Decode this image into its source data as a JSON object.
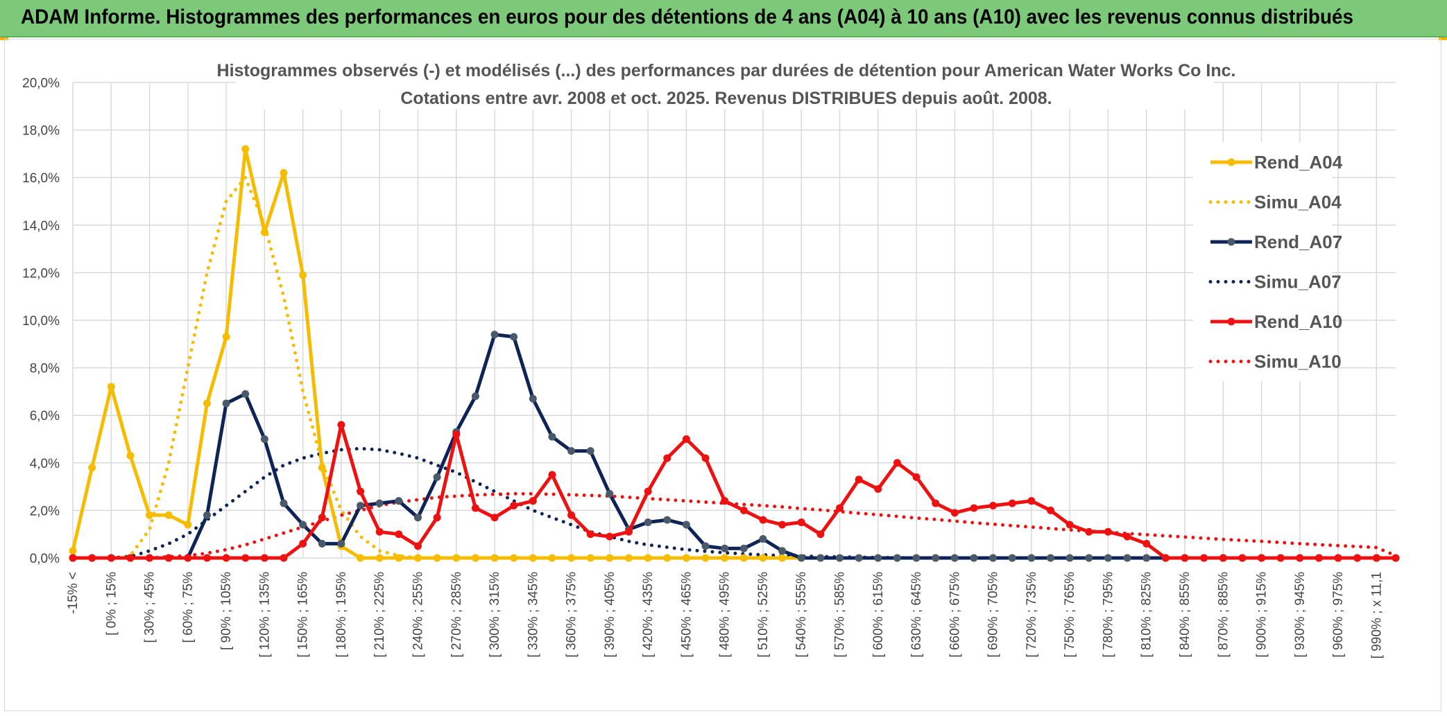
{
  "header": {
    "title": "ADAM Informe. Histogrammes des performances en euros pour des détentions de 4 ans (A04) à 10 ans (A10) avec les revenus connus distribués"
  },
  "chart_data": {
    "type": "line",
    "title_line1": "Histogrammes observés (-) et modélisés (...) des performances par durées de détention pour American Water Works Co Inc.",
    "title_line2": "Cotations entre avr. 2008 et oct. 2025. Revenus DISTRIBUES depuis août. 2008.",
    "ylim": [
      0,
      20
    ],
    "y_ticks": [
      "0,0%",
      "2,0%",
      "4,0%",
      "6,0%",
      "8,0%",
      "10,0%",
      "12,0%",
      "14,0%",
      "16,0%",
      "18,0%",
      "20,0%"
    ],
    "category_labels": [
      "-15% <",
      "[ 0% ; 15%",
      "[ 30% ; 45%",
      "[ 60% ; 75%",
      "[ 90% ; 105%",
      "[ 120% ; 135%",
      "[ 150% ; 165%",
      "[ 180% ; 195%",
      "[ 210% ; 225%",
      "[ 240% ; 255%",
      "[ 270% ; 285%",
      "[ 300% ; 315%",
      "[ 330% ; 345%",
      "[ 360% ; 375%",
      "[ 390% ; 405%",
      "[ 420% ; 435%",
      "[ 450% ; 465%",
      "[ 480% ; 495%",
      "[ 510% ; 525%",
      "[ 540% ; 555%",
      "[ 570% ; 585%",
      "[ 600% ; 615%",
      "[ 630% ; 645%",
      "[ 660% ; 675%",
      "[ 690% ; 705%",
      "[ 720% ; 735%",
      "[ 750% ; 765%",
      "[ 780% ; 795%",
      "[ 810% ; 825%",
      "[ 840% ; 855%",
      "[ 870% ; 885%",
      "[ 900% ; 915%",
      "[ 930% ; 945%",
      "[ 960% ; 975%",
      "[ 990% ; x 11,1"
    ],
    "n_points": 70,
    "series": [
      {
        "name": "Rend_A04",
        "color": "#f5bc00",
        "style": "solid",
        "marker": true,
        "values": [
          0.3,
          3.8,
          7.2,
          4.3,
          1.8,
          1.8,
          1.4,
          6.5,
          9.3,
          17.2,
          13.7,
          16.2,
          11.9,
          3.8,
          0.5,
          0,
          0,
          0,
          0,
          0,
          0,
          0,
          0,
          0,
          0,
          0,
          0,
          0,
          0,
          0,
          0,
          0,
          0,
          0,
          0,
          0,
          0,
          0,
          0,
          0,
          0,
          0,
          0,
          0,
          0,
          0,
          0,
          0,
          0,
          0,
          0,
          0,
          0,
          0,
          0,
          0,
          0,
          0,
          0,
          0,
          0,
          0,
          0,
          0,
          0,
          0,
          0,
          0,
          0,
          0
        ]
      },
      {
        "name": "Simu_A04",
        "color": "#f5bc00",
        "style": "dotted",
        "marker": false,
        "values": [
          0,
          0,
          0,
          0.1,
          1.2,
          4,
          8,
          12,
          15,
          16,
          14,
          11,
          7,
          4,
          2,
          0.9,
          0.3,
          0.1,
          0,
          0,
          0,
          0,
          0,
          0,
          0,
          0,
          0,
          0,
          0,
          0,
          0,
          0,
          0,
          0,
          0,
          0,
          0,
          0,
          0,
          0,
          0,
          0,
          0,
          0,
          0,
          0,
          0,
          0,
          0,
          0,
          0,
          0,
          0,
          0,
          0,
          0,
          0,
          0,
          0,
          0,
          0,
          0,
          0,
          0,
          0,
          0,
          0,
          0,
          0,
          0
        ]
      },
      {
        "name": "Rend_A07",
        "color": "#0f2456",
        "style": "solid",
        "marker": true,
        "values": [
          0,
          0,
          0,
          0,
          0,
          0,
          0,
          1.8,
          6.5,
          6.9,
          5,
          2.3,
          1.4,
          0.6,
          0.6,
          2.2,
          2.3,
          2.4,
          1.7,
          3.4,
          5.3,
          6.8,
          9.4,
          9.3,
          6.7,
          5.1,
          4.5,
          4.5,
          2.7,
          1.2,
          1.5,
          1.6,
          1.4,
          0.5,
          0.4,
          0.4,
          0.8,
          0.3,
          0,
          0,
          0,
          0,
          0,
          0,
          0,
          0,
          0,
          0,
          0,
          0,
          0,
          0,
          0,
          0,
          0,
          0,
          0,
          0,
          0,
          0,
          0,
          0,
          0,
          0,
          0,
          0,
          0,
          0,
          0,
          0
        ]
      },
      {
        "name": "Simu_A07",
        "color": "#0f2456",
        "style": "dotted",
        "marker": false,
        "values": [
          0,
          0,
          0,
          0.05,
          0.3,
          0.6,
          1,
          1.6,
          2.2,
          2.8,
          3.4,
          3.9,
          4.2,
          4.4,
          4.55,
          4.6,
          4.55,
          4.4,
          4.2,
          3.9,
          3.6,
          3.2,
          2.8,
          2.4,
          2,
          1.7,
          1.4,
          1.1,
          0.9,
          0.7,
          0.55,
          0.45,
          0.35,
          0.28,
          0.22,
          0.17,
          0.13,
          0.1,
          0.08,
          0.06,
          0.04,
          0.03,
          0.02,
          0.01,
          0,
          0,
          0,
          0,
          0,
          0,
          0,
          0,
          0,
          0,
          0,
          0,
          0,
          0,
          0,
          0,
          0,
          0,
          0,
          0,
          0,
          0,
          0,
          0,
          0,
          0
        ]
      },
      {
        "name": "Rend_A10",
        "color": "#ee1111",
        "style": "solid",
        "marker": true,
        "values": [
          0,
          0,
          0,
          0,
          0,
          0,
          0,
          0,
          0,
          0,
          0,
          0,
          0.6,
          1.7,
          5.6,
          2.8,
          1.1,
          1,
          0.5,
          1.7,
          5.2,
          2.1,
          1.7,
          2.2,
          2.4,
          3.5,
          1.8,
          1,
          0.9,
          1.1,
          2.8,
          4.2,
          5,
          4.2,
          2.4,
          2,
          1.6,
          1.4,
          1.5,
          1,
          2.1,
          3.3,
          2.9,
          4,
          3.4,
          2.3,
          1.9,
          2.1,
          2.2,
          2.3,
          2.4,
          2,
          1.4,
          1.1,
          1.1,
          0.9,
          0.6,
          0,
          0,
          0,
          0,
          0,
          0,
          0,
          0,
          0,
          0,
          0,
          0,
          0
        ]
      },
      {
        "name": "Simu_A10",
        "color": "#ee1111",
        "style": "dotted",
        "marker": false,
        "values": [
          0,
          0,
          0,
          0,
          0,
          0.05,
          0.1,
          0.2,
          0.35,
          0.55,
          0.8,
          1.05,
          1.3,
          1.55,
          1.8,
          2,
          2.2,
          2.35,
          2.45,
          2.55,
          2.6,
          2.65,
          2.68,
          2.7,
          2.7,
          2.68,
          2.66,
          2.63,
          2.6,
          2.55,
          2.5,
          2.45,
          2.4,
          2.35,
          2.3,
          2.25,
          2.2,
          2.15,
          2.08,
          2.02,
          1.95,
          1.88,
          1.82,
          1.75,
          1.68,
          1.62,
          1.55,
          1.48,
          1.42,
          1.36,
          1.3,
          1.24,
          1.18,
          1.13,
          1.08,
          1.03,
          0.98,
          0.93,
          0.88,
          0.83,
          0.78,
          0.74,
          0.7,
          0.65,
          0.6,
          0.56,
          0.52,
          0.48,
          0.44,
          0.1
        ]
      }
    ]
  }
}
